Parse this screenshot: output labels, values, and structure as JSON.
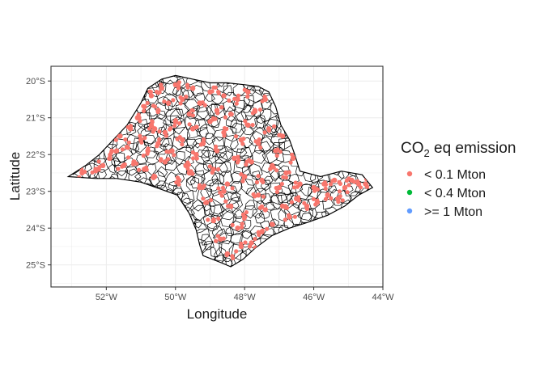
{
  "chart_data": {
    "type": "scatter",
    "subtype": "choropleth-point-map",
    "xlabel": "Longitude",
    "ylabel": "Latitude",
    "xlim": [
      -53.6,
      -44.0
    ],
    "ylim": [
      -25.6,
      -19.6
    ],
    "x_ticks": [
      {
        "value": -52,
        "label": "52°W"
      },
      {
        "value": -50,
        "label": "50°W"
      },
      {
        "value": -48,
        "label": "48°W"
      },
      {
        "value": -46,
        "label": "46°W"
      },
      {
        "value": -44,
        "label": "44°W"
      }
    ],
    "y_ticks": [
      {
        "value": -20,
        "label": "20°S"
      },
      {
        "value": -21,
        "label": "21°S"
      },
      {
        "value": -22,
        "label": "22°S"
      },
      {
        "value": -23,
        "label": "23°S"
      },
      {
        "value": -24,
        "label": "24°S"
      },
      {
        "value": -25,
        "label": "25°S"
      }
    ],
    "grid": true,
    "legend": {
      "title_main": "CO",
      "title_sub": "2",
      "title_rest": " eq emission",
      "placement": "right",
      "entries": [
        {
          "label": "< 0.1 Mton",
          "color": "#F8766D"
        },
        {
          "label": "< 0.4 Mton",
          "color": "#00BA38"
        },
        {
          "label": ">= 1 Mton",
          "color": "#619CFF"
        }
      ]
    },
    "boundary": [
      [
        -53.1,
        -22.6
      ],
      [
        -52.6,
        -22.3
      ],
      [
        -52.2,
        -22.0
      ],
      [
        -51.8,
        -21.6
      ],
      [
        -51.4,
        -21.2
      ],
      [
        -51.0,
        -20.6
      ],
      [
        -50.8,
        -20.2
      ],
      [
        -50.4,
        -19.95
      ],
      [
        -50.0,
        -19.85
      ],
      [
        -49.5,
        -19.95
      ],
      [
        -49.0,
        -20.05
      ],
      [
        -48.5,
        -20.05
      ],
      [
        -48.0,
        -20.1
      ],
      [
        -47.6,
        -20.15
      ],
      [
        -47.3,
        -20.3
      ],
      [
        -47.1,
        -20.7
      ],
      [
        -46.95,
        -21.2
      ],
      [
        -46.7,
        -21.6
      ],
      [
        -46.55,
        -22.0
      ],
      [
        -46.4,
        -22.45
      ],
      [
        -45.8,
        -22.6
      ],
      [
        -45.2,
        -22.45
      ],
      [
        -44.6,
        -22.55
      ],
      [
        -44.3,
        -22.9
      ],
      [
        -44.7,
        -23.1
      ],
      [
        -45.1,
        -23.4
      ],
      [
        -45.6,
        -23.65
      ],
      [
        -46.2,
        -23.85
      ],
      [
        -46.7,
        -24.0
      ],
      [
        -47.2,
        -24.2
      ],
      [
        -47.7,
        -24.55
      ],
      [
        -48.05,
        -24.85
      ],
      [
        -48.4,
        -25.05
      ],
      [
        -48.65,
        -24.95
      ],
      [
        -49.2,
        -24.75
      ],
      [
        -49.3,
        -24.45
      ],
      [
        -49.4,
        -24.05
      ],
      [
        -49.6,
        -23.6
      ],
      [
        -49.95,
        -23.1
      ],
      [
        -50.4,
        -22.95
      ],
      [
        -51.0,
        -22.75
      ],
      [
        -51.7,
        -22.65
      ],
      [
        -52.3,
        -22.65
      ],
      [
        -53.1,
        -22.6
      ]
    ],
    "series": [
      {
        "name": "< 0.1 Mton",
        "color": "#F8766D",
        "points": [
          [
            -52.3,
            -22.4
          ],
          [
            -52.1,
            -22.3
          ],
          [
            -51.9,
            -22.1
          ],
          [
            -51.7,
            -21.9
          ],
          [
            -51.6,
            -21.5
          ],
          [
            -51.4,
            -21.8
          ],
          [
            -51.3,
            -21.3
          ],
          [
            -51.2,
            -22.2
          ],
          [
            -51.1,
            -21.0
          ],
          [
            -51.0,
            -21.6
          ],
          [
            -50.9,
            -20.7
          ],
          [
            -50.9,
            -22.4
          ],
          [
            -50.8,
            -21.9
          ],
          [
            -50.7,
            -20.4
          ],
          [
            -50.7,
            -21.2
          ],
          [
            -50.6,
            -22.6
          ],
          [
            -50.5,
            -20.8
          ],
          [
            -50.5,
            -21.7
          ],
          [
            -50.4,
            -20.2
          ],
          [
            -50.3,
            -21.4
          ],
          [
            -50.3,
            -22.2
          ],
          [
            -50.2,
            -20.6
          ],
          [
            -50.1,
            -21.9
          ],
          [
            -50.0,
            -20.1
          ],
          [
            -50.0,
            -21.1
          ],
          [
            -49.9,
            -22.7
          ],
          [
            -49.8,
            -20.5
          ],
          [
            -49.8,
            -21.6
          ],
          [
            -49.7,
            -22.3
          ],
          [
            -49.6,
            -20.9
          ],
          [
            -49.5,
            -20.2
          ],
          [
            -49.5,
            -21.3
          ],
          [
            -49.4,
            -22.0
          ],
          [
            -49.3,
            -22.9
          ],
          [
            -49.3,
            -20.6
          ],
          [
            -49.2,
            -21.7
          ],
          [
            -49.1,
            -23.3
          ],
          [
            -49.0,
            -20.3
          ],
          [
            -49.0,
            -21.1
          ],
          [
            -48.9,
            -22.4
          ],
          [
            -48.9,
            -23.8
          ],
          [
            -48.8,
            -20.8
          ],
          [
            -48.8,
            -21.9
          ],
          [
            -48.7,
            -24.3
          ],
          [
            -48.6,
            -20.4
          ],
          [
            -48.6,
            -21.4
          ],
          [
            -48.5,
            -22.8
          ],
          [
            -48.5,
            -24.7
          ],
          [
            -48.4,
            -20.9
          ],
          [
            -48.4,
            -23.4
          ],
          [
            -48.3,
            -22.1
          ],
          [
            -48.2,
            -20.5
          ],
          [
            -48.2,
            -24.0
          ],
          [
            -48.1,
            -21.6
          ],
          [
            -48.0,
            -22.6
          ],
          [
            -48.0,
            -23.7
          ],
          [
            -47.9,
            -20.3
          ],
          [
            -47.9,
            -21.2
          ],
          [
            -47.8,
            -24.4
          ],
          [
            -47.8,
            -22.2
          ],
          [
            -47.7,
            -20.8
          ],
          [
            -47.6,
            -23.1
          ],
          [
            -47.6,
            -21.7
          ],
          [
            -47.5,
            -22.7
          ],
          [
            -47.4,
            -20.5
          ],
          [
            -47.4,
            -23.5
          ],
          [
            -47.3,
            -21.3
          ],
          [
            -47.2,
            -22.3
          ],
          [
            -47.2,
            -23.9
          ],
          [
            -47.1,
            -21.9
          ],
          [
            -47.0,
            -22.9
          ],
          [
            -46.9,
            -23.4
          ],
          [
            -46.9,
            -21.5
          ],
          [
            -46.8,
            -22.5
          ],
          [
            -46.7,
            -23.7
          ],
          [
            -46.6,
            -22.1
          ],
          [
            -46.5,
            -23.2
          ],
          [
            -46.4,
            -22.8
          ],
          [
            -46.2,
            -23.4
          ],
          [
            -46.0,
            -22.9
          ],
          [
            -45.9,
            -23.3
          ],
          [
            -45.7,
            -22.8
          ],
          [
            -45.6,
            -23.1
          ],
          [
            -45.4,
            -22.7
          ],
          [
            -45.3,
            -23.2
          ],
          [
            -45.1,
            -22.9
          ],
          [
            -44.9,
            -22.7
          ],
          [
            -44.7,
            -22.8
          ],
          [
            -44.5,
            -22.8
          ],
          [
            -48.1,
            -24.5
          ],
          [
            -47.5,
            -24.1
          ],
          [
            -48.6,
            -23.0
          ],
          [
            -49.6,
            -22.5
          ],
          [
            -50.6,
            -21.3
          ],
          [
            -51.5,
            -22.3
          ],
          [
            -52.7,
            -22.5
          ]
        ]
      },
      {
        "name": "< 0.4 Mton",
        "color": "#00BA38",
        "points": []
      },
      {
        "name": ">= 1 Mton",
        "color": "#619CFF",
        "points": []
      }
    ]
  }
}
